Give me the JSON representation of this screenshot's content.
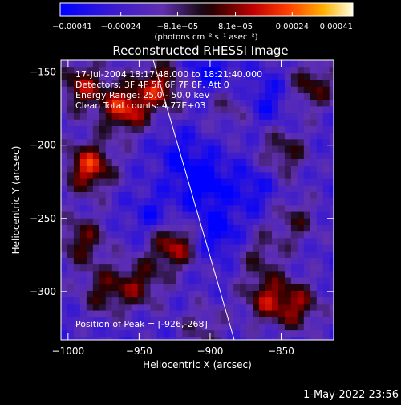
{
  "chart_data": {
    "type": "heatmap",
    "title": "Reconstructed RHESSI Image",
    "xlabel": "Heliocentric X (arcsec)",
    "ylabel": "Heliocentric Y (arcsec)",
    "xlim": [
      -1005,
      -813
    ],
    "ylim": [
      -333,
      -142
    ],
    "x_ticks": [
      -1000,
      -950,
      -900,
      -850
    ],
    "x_tick_labels": [
      "−1000",
      "−950",
      "−900",
      "−850"
    ],
    "y_ticks": [
      -150,
      -200,
      -250,
      -300
    ],
    "y_tick_labels": [
      "−150",
      "−200",
      "−250",
      "−300"
    ],
    "colorbar": {
      "min": -0.00041,
      "max": 0.00041,
      "ticks": [
        -0.00041,
        -0.00024,
        -8.1e-05,
        8.1e-05,
        0.00024,
        0.00041
      ],
      "tick_labels": [
        "−0.00041",
        "−0.00024",
        "−8.1e−05",
        "8.1e−05",
        "0.00024",
        "0.00041"
      ],
      "unit_label": "(photons cm⁻² s⁻¹ asec⁻²)"
    },
    "annotations": {
      "time": "17-Jul-2004 18:17:48.000 to 18:21:40.000",
      "detectors": "Detectors: 3F 4F 5F 6F 7F 8F, Att 0",
      "energy": "Energy Range: 25.0 - 50.0 keV",
      "clean": "Clean      Total counts: 4.77E+03",
      "peak": "Position of Peak = [-926,-268]"
    },
    "limb_line": {
      "x": [
        -940,
        -883
      ],
      "y": [
        -142,
        -333
      ]
    },
    "peak_position": [
      -926,
      -268
    ],
    "hot_spots": [
      {
        "x": -985,
        "y": -215,
        "level": 0.0004
      },
      {
        "x": -960,
        "y": -175,
        "level": 0.00038
      },
      {
        "x": -935,
        "y": -160,
        "level": 0.00033
      },
      {
        "x": -990,
        "y": -160,
        "level": 0.0003
      },
      {
        "x": -990,
        "y": -265,
        "level": 0.00026
      },
      {
        "x": -926,
        "y": -268,
        "level": 0.00036
      },
      {
        "x": -950,
        "y": -295,
        "level": 0.00024
      },
      {
        "x": -975,
        "y": -300,
        "level": 0.00022
      },
      {
        "x": -860,
        "y": -305,
        "level": 0.00028
      },
      {
        "x": -838,
        "y": -310,
        "level": 0.00026
      },
      {
        "x": -828,
        "y": -160,
        "level": 0.00025
      },
      {
        "x": -848,
        "y": -205,
        "level": 0.00022
      },
      {
        "x": -840,
        "y": -252,
        "level": 0.00018
      },
      {
        "x": -887,
        "y": -172,
        "level": 0.00016
      },
      {
        "x": -905,
        "y": -325,
        "level": 0.00015
      },
      {
        "x": -865,
        "y": -275,
        "level": 0.00016
      }
    ],
    "cold_spots": [
      {
        "x": -905,
        "y": -225,
        "level": -0.00025
      },
      {
        "x": -895,
        "y": -260,
        "level": -0.0002
      },
      {
        "x": -900,
        "y": -152,
        "level": -0.00018
      },
      {
        "x": -860,
        "y": -168,
        "level": -0.00015
      },
      {
        "x": -938,
        "y": -250,
        "level": -0.00015
      },
      {
        "x": -870,
        "y": -230,
        "level": -0.00014
      },
      {
        "x": -922,
        "y": -205,
        "level": -0.00012
      }
    ]
  },
  "timestamp": "1-May-2022 23:56"
}
